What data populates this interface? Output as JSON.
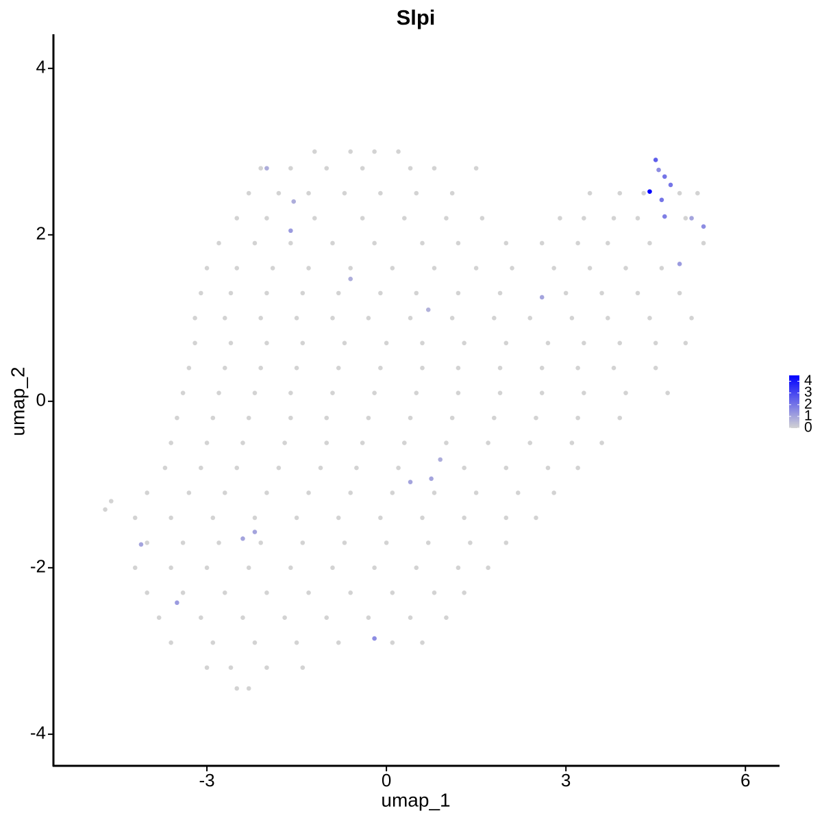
{
  "chart_data": {
    "type": "scatter",
    "title": "Slpi",
    "x_label": "umap_1",
    "y_label": "umap_2",
    "xlim": [
      -5.565,
      6.57
    ],
    "ylim": [
      -4.38,
      4.41
    ],
    "xticks": [
      -3,
      0,
      3,
      6
    ],
    "yticks": [
      -4,
      -2,
      0,
      2,
      4
    ],
    "colorbar": {
      "lim": [
        0,
        4.5
      ],
      "ticks": [
        0,
        1,
        2,
        3,
        4
      ],
      "low": "#d3d3d3",
      "high": "#0000ff"
    },
    "series": [
      {
        "color": "#d3d3d3",
        "x": [
          -1.2,
          -0.6,
          -0.2,
          0.2,
          -2.1,
          -1.6,
          -1.0,
          -0.4,
          0.4,
          0.8,
          1.5,
          -2.3,
          -1.8,
          -1.3,
          -0.7,
          -0.1,
          0.5,
          1.1,
          3.4,
          3.9,
          4.3,
          4.9,
          5.2,
          -2.5,
          -2.0,
          -1.2,
          -0.4,
          0.3,
          1.0,
          1.6,
          2.9,
          3.3,
          3.8,
          4.2,
          5.0,
          -2.8,
          -2.2,
          -1.6,
          -0.9,
          -0.2,
          0.6,
          1.2,
          2.0,
          2.6,
          3.2,
          3.7,
          4.4,
          5.3,
          -3.0,
          -2.5,
          -1.9,
          -1.3,
          -0.6,
          0.1,
          0.8,
          1.5,
          2.1,
          2.8,
          3.4,
          4.0,
          4.6,
          -3.1,
          -2.6,
          -2.0,
          -1.4,
          -0.8,
          -0.1,
          0.5,
          1.2,
          1.9,
          3.0,
          3.6,
          4.2,
          4.9,
          -3.2,
          -2.7,
          -2.1,
          -1.5,
          -0.9,
          -0.3,
          0.4,
          1.1,
          1.8,
          2.4,
          3.1,
          3.7,
          4.4,
          5.1,
          -3.2,
          -2.6,
          -2.0,
          -1.4,
          -0.7,
          0.0,
          0.6,
          1.3,
          2.0,
          2.7,
          3.3,
          3.9,
          4.5,
          5.0,
          -3.3,
          -2.7,
          -2.1,
          -1.5,
          -0.8,
          -0.1,
          0.6,
          1.2,
          1.9,
          2.6,
          3.2,
          3.8,
          4.5,
          -3.4,
          -2.8,
          -2.2,
          -1.6,
          -0.9,
          -0.2,
          0.5,
          1.2,
          1.9,
          2.6,
          3.3,
          4.0,
          4.7,
          -3.5,
          -2.9,
          -2.3,
          -1.6,
          -1.0,
          -0.3,
          0.4,
          1.1,
          1.8,
          2.5,
          3.2,
          3.9,
          -3.6,
          -3.0,
          -2.4,
          -1.7,
          -1.0,
          -0.4,
          0.3,
          1.0,
          1.7,
          2.4,
          3.1,
          3.6,
          -3.7,
          -3.1,
          -2.5,
          -1.8,
          -1.1,
          -0.5,
          0.2,
          1.3,
          2.0,
          2.7,
          3.2,
          -4.0,
          -3.3,
          -2.7,
          -2.0,
          -1.3,
          -0.6,
          0.1,
          0.8,
          1.5,
          2.2,
          2.8,
          -4.7,
          -4.6,
          -4.2,
          -3.6,
          -2.9,
          -2.2,
          -1.5,
          -0.8,
          -0.1,
          0.6,
          1.3,
          2.0,
          2.5,
          -4.0,
          -3.4,
          -2.8,
          -2.1,
          -1.4,
          -0.7,
          0.0,
          0.7,
          1.4,
          2.0,
          -4.2,
          -3.6,
          -3.0,
          -2.3,
          -1.6,
          -0.9,
          -0.2,
          0.5,
          1.2,
          1.7,
          -4.0,
          -3.4,
          -2.7,
          -2.0,
          -1.3,
          -0.6,
          0.1,
          0.8,
          1.3,
          -3.8,
          -3.1,
          -2.4,
          -1.7,
          -1.0,
          -0.3,
          0.4,
          1.0,
          -3.6,
          -2.9,
          -2.2,
          -1.5,
          -0.8,
          0.1,
          0.6,
          -3.0,
          -2.6,
          -2.0,
          -1.4,
          -2.5,
          -2.3
        ],
        "values": [
          3.0,
          3.0,
          3.0,
          3.0,
          2.8,
          2.8,
          2.8,
          2.8,
          2.8,
          2.8,
          2.8,
          2.5,
          2.5,
          2.5,
          2.5,
          2.5,
          2.5,
          2.5,
          2.5,
          2.5,
          2.5,
          2.5,
          2.5,
          2.2,
          2.2,
          2.2,
          2.2,
          2.2,
          2.2,
          2.2,
          2.2,
          2.2,
          2.2,
          2.2,
          2.2,
          1.9,
          1.9,
          1.9,
          1.9,
          1.9,
          1.9,
          1.9,
          1.9,
          1.9,
          1.9,
          1.9,
          1.9,
          1.9,
          1.6,
          1.6,
          1.6,
          1.6,
          1.6,
          1.6,
          1.6,
          1.6,
          1.6,
          1.6,
          1.6,
          1.6,
          1.6,
          1.3,
          1.3,
          1.3,
          1.3,
          1.3,
          1.3,
          1.3,
          1.3,
          1.3,
          1.3,
          1.3,
          1.3,
          1.3,
          1.0,
          1.0,
          1.0,
          1.0,
          1.0,
          1.0,
          1.0,
          1.0,
          1.0,
          1.0,
          1.0,
          1.0,
          1.0,
          1.0,
          0.7,
          0.7,
          0.7,
          0.7,
          0.7,
          0.7,
          0.7,
          0.7,
          0.7,
          0.7,
          0.7,
          0.7,
          0.7,
          0.7,
          0.4,
          0.4,
          0.4,
          0.4,
          0.4,
          0.4,
          0.4,
          0.4,
          0.4,
          0.4,
          0.4,
          0.4,
          0.4,
          0.1,
          0.1,
          0.1,
          0.1,
          0.1,
          0.1,
          0.1,
          0.1,
          0.1,
          0.1,
          0.1,
          0.1,
          0.1,
          -0.2,
          -0.2,
          -0.2,
          -0.2,
          -0.2,
          -0.2,
          -0.2,
          -0.2,
          -0.2,
          -0.2,
          -0.2,
          -0.2,
          -0.5,
          -0.5,
          -0.5,
          -0.5,
          -0.5,
          -0.5,
          -0.5,
          -0.5,
          -0.5,
          -0.5,
          -0.5,
          -0.5,
          -0.8,
          -0.8,
          -0.8,
          -0.8,
          -0.8,
          -0.8,
          -0.8,
          -0.8,
          -0.8,
          -0.8,
          -0.8,
          -1.1,
          -1.1,
          -1.1,
          -1.1,
          -1.1,
          -1.1,
          -1.1,
          -1.1,
          -1.1,
          -1.1,
          -1.1,
          -1.3,
          -1.2,
          -1.4,
          -1.4,
          -1.4,
          -1.4,
          -1.4,
          -1.4,
          -1.4,
          -1.4,
          -1.4,
          -1.4,
          -1.4,
          -1.7,
          -1.7,
          -1.7,
          -1.7,
          -1.7,
          -1.7,
          -1.7,
          -1.7,
          -1.7,
          -1.7,
          -2.0,
          -2.0,
          -2.0,
          -2.0,
          -2.0,
          -2.0,
          -2.0,
          -2.0,
          -2.0,
          -2.0,
          -2.3,
          -2.3,
          -2.3,
          -2.3,
          -2.3,
          -2.3,
          -2.3,
          -2.3,
          -2.3,
          -2.6,
          -2.6,
          -2.6,
          -2.6,
          -2.6,
          -2.6,
          -2.6,
          -2.6,
          -2.9,
          -2.9,
          -2.9,
          -2.9,
          -2.9,
          -2.9,
          -2.9,
          -3.2,
          -3.2,
          -3.2,
          -3.2,
          -3.45,
          -3.45
        ]
      },
      {
        "x": [
          4.5,
          4.55,
          4.65,
          4.75,
          4.6,
          4.65,
          5.3,
          4.9,
          5.1,
          -1.6,
          -2.0,
          -1.55,
          -0.6,
          0.7,
          2.6,
          0.9,
          0.4,
          0.75,
          -2.2,
          -2.4,
          -4.1,
          -3.5,
          -0.2,
          4.4
        ],
        "values": [
          2.9,
          2.78,
          2.7,
          2.6,
          2.42,
          2.22,
          2.1,
          1.65,
          2.2,
          2.05,
          2.8,
          2.4,
          1.47,
          1.1,
          1.25,
          -0.7,
          -0.97,
          -0.93,
          -1.57,
          -1.65,
          -1.72,
          -2.42,
          -2.85,
          2.52
        ],
        "expression": [
          2.5,
          1.5,
          2,
          2,
          2,
          1.8,
          1.5,
          1.2,
          1,
          1.2,
          0.8,
          0.8,
          0.8,
          0.7,
          1,
          0.8,
          1,
          1,
          1,
          1,
          1,
          1.2,
          1.5,
          4.5
        ]
      }
    ]
  }
}
